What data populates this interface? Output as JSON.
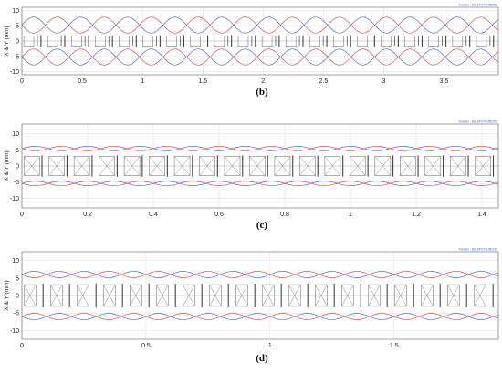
{
  "colors": {
    "x_envelope": "#3a50e0",
    "y_envelope": "#e0303a",
    "element_outline": "#666666",
    "grid": "#dddddd",
    "frame": "#777777"
  },
  "chart_data": [
    {
      "type": "line",
      "caption": "(b)",
      "ylabel": "X & Y (mm)",
      "watermark": "Transfer - DSLEPGTUJ4DCK",
      "xlim": [
        0,
        3.95
      ],
      "ylim": [
        -11,
        11
      ],
      "x_ticks": [
        "0",
        "0.5",
        "1",
        "1.5",
        "2",
        "2.5",
        "3",
        "3.5"
      ],
      "x_tick_values": [
        0,
        0.5,
        1,
        1.5,
        2,
        2.5,
        3,
        3.5
      ],
      "y_ticks": [
        "10",
        "5",
        "0",
        "-5",
        "-10"
      ],
      "y_tick_values": [
        10,
        5,
        0,
        -5,
        -10
      ],
      "period": 0.39,
      "series": [
        {
          "role": "x-envelope",
          "mean": 5.2,
          "amplitude": 2.6,
          "phase": 0.0
        },
        {
          "role": "y-envelope",
          "mean": 5.2,
          "amplitude": 2.6,
          "phase": 3.14159
        }
      ],
      "elements": {
        "gap_count": 20,
        "box_half_height": 1.7,
        "quad_half_height": 1.9,
        "box_fraction": 0.42
      }
    },
    {
      "type": "line",
      "caption": "(c)",
      "ylabel": "X & Y (mm)",
      "watermark": "Transfer - DSLEPGTUJ4DCK",
      "xlim": [
        0,
        1.45
      ],
      "ylim": [
        -13,
        13
      ],
      "x_ticks": [
        "0",
        "0.2",
        "0.4",
        "0.6",
        "0.8",
        "1",
        "1.2",
        "1.4"
      ],
      "x_tick_values": [
        0,
        0.2,
        0.4,
        0.6,
        0.8,
        1.0,
        1.2,
        1.4
      ],
      "y_ticks": [
        "10",
        "5",
        "0",
        "-5",
        "-10"
      ],
      "y_tick_values": [
        10,
        5,
        0,
        -5,
        -10
      ],
      "period": 0.16,
      "series": [
        {
          "role": "x-envelope",
          "mean": 5.4,
          "amplitude": 0.7,
          "phase": 0.0
        },
        {
          "role": "y-envelope",
          "mean": 5.4,
          "amplitude": 0.7,
          "phase": 3.14159
        }
      ],
      "elements": {
        "gap_count": 19,
        "box_half_height": 3.0,
        "quad_half_height": 3.3,
        "box_fraction": 0.62
      }
    },
    {
      "type": "line",
      "caption": "(d)",
      "ylabel": "X & Y (mm)",
      "watermark": "Transfer - DSLEPGTUJ4DCK",
      "xlim": [
        0,
        1.92
      ],
      "ylim": [
        -12.5,
        12.5
      ],
      "x_ticks": [
        "0",
        "0.5",
        "1",
        "1.5"
      ],
      "x_tick_values": [
        0,
        0.5,
        1,
        1.5
      ],
      "y_ticks": [
        "10",
        "5",
        "0",
        "-5",
        "-10"
      ],
      "y_tick_values": [
        10,
        5,
        0,
        -5,
        -10
      ],
      "period": 0.2,
      "series": [
        {
          "role": "x-envelope",
          "mean": 6.0,
          "amplitude": 0.9,
          "phase": 0.0
        },
        {
          "role": "y-envelope",
          "mean": 6.0,
          "amplitude": 0.9,
          "phase": 3.14159
        }
      ],
      "elements": {
        "gap_count": 18,
        "box_half_height": 3.1,
        "quad_half_height": 3.4,
        "box_fraction": 0.45
      }
    }
  ]
}
